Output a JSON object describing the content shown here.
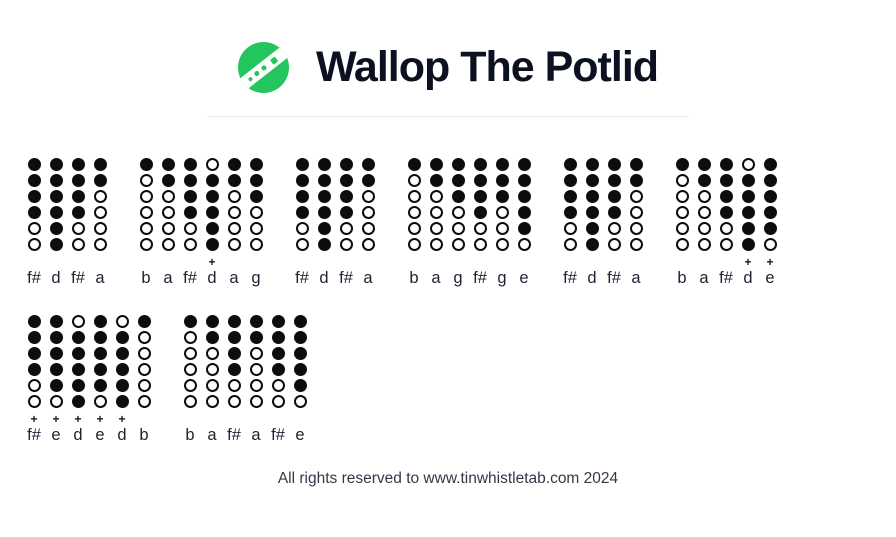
{
  "header": {
    "title": "Wallop The Potlid",
    "icon": "tin-whistle-logo"
  },
  "colors": {
    "accent_green": "#22c55e",
    "ink": "#0b1120",
    "hole_black": "#0d0d0d",
    "divider_gray": "#e6e8ec"
  },
  "tab": {
    "plus_symbol": "+",
    "hole_legend": {
      "1": "covered-hole",
      "0": "open-hole"
    },
    "rows": [
      {
        "measures": [
          {
            "notes": [
              {
                "label": "f#",
                "plus": false,
                "holes": [
                  1,
                  1,
                  1,
                  1,
                  0,
                  0
                ]
              },
              {
                "label": "d",
                "plus": false,
                "holes": [
                  1,
                  1,
                  1,
                  1,
                  1,
                  1
                ]
              },
              {
                "label": "f#",
                "plus": false,
                "holes": [
                  1,
                  1,
                  1,
                  1,
                  0,
                  0
                ]
              },
              {
                "label": "a",
                "plus": false,
                "holes": [
                  1,
                  1,
                  0,
                  0,
                  0,
                  0
                ]
              }
            ]
          },
          {
            "notes": [
              {
                "label": "b",
                "plus": false,
                "holes": [
                  1,
                  0,
                  0,
                  0,
                  0,
                  0
                ]
              },
              {
                "label": "a",
                "plus": false,
                "holes": [
                  1,
                  1,
                  0,
                  0,
                  0,
                  0
                ]
              },
              {
                "label": "f#",
                "plus": false,
                "holes": [
                  1,
                  1,
                  1,
                  1,
                  0,
                  0
                ]
              },
              {
                "label": "d",
                "plus": true,
                "holes": [
                  0,
                  1,
                  1,
                  1,
                  1,
                  1
                ]
              },
              {
                "label": "a",
                "plus": false,
                "holes": [
                  1,
                  1,
                  0,
                  0,
                  0,
                  0
                ]
              },
              {
                "label": "g",
                "plus": false,
                "holes": [
                  1,
                  1,
                  1,
                  0,
                  0,
                  0
                ]
              }
            ]
          },
          {
            "notes": [
              {
                "label": "f#",
                "plus": false,
                "holes": [
                  1,
                  1,
                  1,
                  1,
                  0,
                  0
                ]
              },
              {
                "label": "d",
                "plus": false,
                "holes": [
                  1,
                  1,
                  1,
                  1,
                  1,
                  1
                ]
              },
              {
                "label": "f#",
                "plus": false,
                "holes": [
                  1,
                  1,
                  1,
                  1,
                  0,
                  0
                ]
              },
              {
                "label": "a",
                "plus": false,
                "holes": [
                  1,
                  1,
                  0,
                  0,
                  0,
                  0
                ]
              }
            ]
          },
          {
            "notes": [
              {
                "label": "b",
                "plus": false,
                "holes": [
                  1,
                  0,
                  0,
                  0,
                  0,
                  0
                ]
              },
              {
                "label": "a",
                "plus": false,
                "holes": [
                  1,
                  1,
                  0,
                  0,
                  0,
                  0
                ]
              },
              {
                "label": "g",
                "plus": false,
                "holes": [
                  1,
                  1,
                  1,
                  0,
                  0,
                  0
                ]
              },
              {
                "label": "f#",
                "plus": false,
                "holes": [
                  1,
                  1,
                  1,
                  1,
                  0,
                  0
                ]
              },
              {
                "label": "g",
                "plus": false,
                "holes": [
                  1,
                  1,
                  1,
                  0,
                  0,
                  0
                ]
              },
              {
                "label": "e",
                "plus": false,
                "holes": [
                  1,
                  1,
                  1,
                  1,
                  1,
                  0
                ]
              }
            ]
          },
          {
            "notes": [
              {
                "label": "f#",
                "plus": false,
                "holes": [
                  1,
                  1,
                  1,
                  1,
                  0,
                  0
                ]
              },
              {
                "label": "d",
                "plus": false,
                "holes": [
                  1,
                  1,
                  1,
                  1,
                  1,
                  1
                ]
              },
              {
                "label": "f#",
                "plus": false,
                "holes": [
                  1,
                  1,
                  1,
                  1,
                  0,
                  0
                ]
              },
              {
                "label": "a",
                "plus": false,
                "holes": [
                  1,
                  1,
                  0,
                  0,
                  0,
                  0
                ]
              }
            ]
          },
          {
            "notes": [
              {
                "label": "b",
                "plus": false,
                "holes": [
                  1,
                  0,
                  0,
                  0,
                  0,
                  0
                ]
              },
              {
                "label": "a",
                "plus": false,
                "holes": [
                  1,
                  1,
                  0,
                  0,
                  0,
                  0
                ]
              },
              {
                "label": "f#",
                "plus": false,
                "holes": [
                  1,
                  1,
                  1,
                  1,
                  0,
                  0
                ]
              },
              {
                "label": "d",
                "plus": true,
                "holes": [
                  0,
                  1,
                  1,
                  1,
                  1,
                  1
                ]
              },
              {
                "label": "e",
                "plus": true,
                "holes": [
                  1,
                  1,
                  1,
                  1,
                  1,
                  0
                ]
              }
            ]
          }
        ]
      },
      {
        "measures": [
          {
            "notes": [
              {
                "label": "f#",
                "plus": true,
                "holes": [
                  1,
                  1,
                  1,
                  1,
                  0,
                  0
                ]
              },
              {
                "label": "e",
                "plus": true,
                "holes": [
                  1,
                  1,
                  1,
                  1,
                  1,
                  0
                ]
              },
              {
                "label": "d",
                "plus": true,
                "holes": [
                  0,
                  1,
                  1,
                  1,
                  1,
                  1
                ]
              },
              {
                "label": "e",
                "plus": true,
                "holes": [
                  1,
                  1,
                  1,
                  1,
                  1,
                  0
                ]
              },
              {
                "label": "d",
                "plus": true,
                "holes": [
                  0,
                  1,
                  1,
                  1,
                  1,
                  1
                ]
              },
              {
                "label": "b",
                "plus": false,
                "holes": [
                  1,
                  0,
                  0,
                  0,
                  0,
                  0
                ]
              }
            ]
          },
          {
            "notes": [
              {
                "label": "b",
                "plus": false,
                "holes": [
                  1,
                  0,
                  0,
                  0,
                  0,
                  0
                ]
              },
              {
                "label": "a",
                "plus": false,
                "holes": [
                  1,
                  1,
                  0,
                  0,
                  0,
                  0
                ]
              },
              {
                "label": "f#",
                "plus": false,
                "holes": [
                  1,
                  1,
                  1,
                  1,
                  0,
                  0
                ]
              },
              {
                "label": "a",
                "plus": false,
                "holes": [
                  1,
                  1,
                  0,
                  0,
                  0,
                  0
                ]
              },
              {
                "label": "f#",
                "plus": false,
                "holes": [
                  1,
                  1,
                  1,
                  1,
                  0,
                  0
                ]
              },
              {
                "label": "e",
                "plus": false,
                "holes": [
                  1,
                  1,
                  1,
                  1,
                  1,
                  0
                ]
              }
            ]
          }
        ]
      }
    ]
  },
  "footer": {
    "text": "All rights reserved to www.tinwhistletab.com 2024"
  }
}
